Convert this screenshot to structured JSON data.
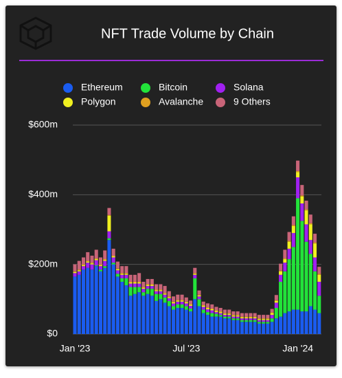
{
  "chart_data": {
    "type": "stacked_bar",
    "title": "NFT Trade Volume by Chain",
    "categories": [
      "Jan '23",
      null,
      null,
      null,
      null,
      null,
      null,
      null,
      null,
      null,
      null,
      null,
      null,
      null,
      null,
      null,
      null,
      null,
      null,
      null,
      null,
      null,
      null,
      null,
      null,
      null,
      "Jul '23",
      null,
      null,
      null,
      null,
      null,
      null,
      null,
      null,
      null,
      null,
      null,
      null,
      null,
      null,
      null,
      null,
      null,
      null,
      null,
      null,
      null,
      null,
      null,
      null,
      null,
      "Jan '24",
      null,
      null,
      null,
      null,
      null
    ],
    "series": [
      {
        "name": "Ethereum",
        "color": "#1a5cf0",
        "values": [
          165,
          170,
          185,
          190,
          185,
          195,
          180,
          190,
          270,
          200,
          165,
          150,
          140,
          110,
          115,
          120,
          110,
          115,
          110,
          95,
          100,
          90,
          80,
          70,
          75,
          75,
          70,
          65,
          100,
          80,
          60,
          55,
          50,
          50,
          50,
          45,
          45,
          40,
          40,
          35,
          35,
          35,
          35,
          30,
          30,
          30,
          35,
          45,
          50,
          60,
          65,
          70,
          70,
          65,
          65,
          80,
          70,
          60
        ]
      },
      {
        "name": "Bitcoin",
        "color": "#22e33a",
        "values": [
          0,
          0,
          0,
          0,
          0,
          2,
          5,
          5,
          5,
          5,
          8,
          10,
          20,
          25,
          20,
          15,
          10,
          15,
          20,
          20,
          15,
          15,
          15,
          10,
          10,
          10,
          10,
          8,
          60,
          20,
          10,
          8,
          10,
          8,
          5,
          5,
          5,
          5,
          5,
          5,
          5,
          5,
          5,
          5,
          5,
          5,
          10,
          30,
          100,
          120,
          150,
          180,
          320,
          260,
          200,
          150,
          110,
          50
        ]
      },
      {
        "name": "Solana",
        "color": "#a020f0",
        "values": [
          10,
          10,
          10,
          15,
          15,
          15,
          10,
          15,
          20,
          15,
          10,
          10,
          10,
          10,
          10,
          10,
          10,
          8,
          8,
          8,
          8,
          8,
          8,
          8,
          8,
          8,
          8,
          8,
          10,
          8,
          8,
          8,
          8,
          5,
          5,
          5,
          5,
          5,
          5,
          5,
          5,
          5,
          5,
          5,
          5,
          5,
          10,
          15,
          20,
          25,
          30,
          40,
          60,
          50,
          50,
          40,
          40,
          40
        ]
      },
      {
        "name": "Polygon",
        "color": "#f0f020",
        "values": [
          3,
          3,
          3,
          3,
          3,
          3,
          3,
          3,
          45,
          3,
          3,
          3,
          3,
          3,
          3,
          3,
          3,
          3,
          3,
          3,
          3,
          3,
          3,
          3,
          3,
          3,
          3,
          3,
          3,
          3,
          3,
          3,
          3,
          3,
          3,
          3,
          3,
          3,
          3,
          3,
          3,
          3,
          3,
          3,
          3,
          3,
          5,
          5,
          10,
          10,
          20,
          20,
          15,
          20,
          40,
          45,
          40,
          20
        ]
      },
      {
        "name": "Avalanche",
        "color": "#e0a020",
        "values": [
          2,
          2,
          2,
          2,
          2,
          2,
          2,
          2,
          2,
          2,
          2,
          2,
          2,
          2,
          2,
          2,
          2,
          2,
          2,
          2,
          2,
          2,
          2,
          2,
          2,
          2,
          2,
          2,
          2,
          2,
          2,
          2,
          2,
          2,
          2,
          2,
          2,
          2,
          2,
          2,
          2,
          2,
          2,
          2,
          2,
          2,
          2,
          2,
          2,
          2,
          3,
          3,
          3,
          3,
          3,
          3,
          3,
          3
        ]
      },
      {
        "name": "9 Others",
        "color": "#c86478",
        "values": [
          20,
          25,
          20,
          25,
          20,
          25,
          20,
          25,
          20,
          20,
          20,
          20,
          20,
          20,
          20,
          25,
          15,
          15,
          15,
          15,
          15,
          20,
          15,
          15,
          15,
          15,
          12,
          10,
          15,
          12,
          10,
          12,
          12,
          10,
          10,
          10,
          10,
          10,
          10,
          10,
          10,
          10,
          10,
          10,
          10,
          10,
          10,
          15,
          20,
          25,
          25,
          25,
          30,
          30,
          25,
          25,
          25,
          20
        ]
      }
    ],
    "ylim": [
      0,
      600
    ],
    "yticks": [
      {
        "value": 0,
        "label": "$0"
      },
      {
        "value": 200,
        "label": "$200m"
      },
      {
        "value": 400,
        "label": "$400m"
      },
      {
        "value": 600,
        "label": "$600m"
      }
    ],
    "grid": true
  }
}
